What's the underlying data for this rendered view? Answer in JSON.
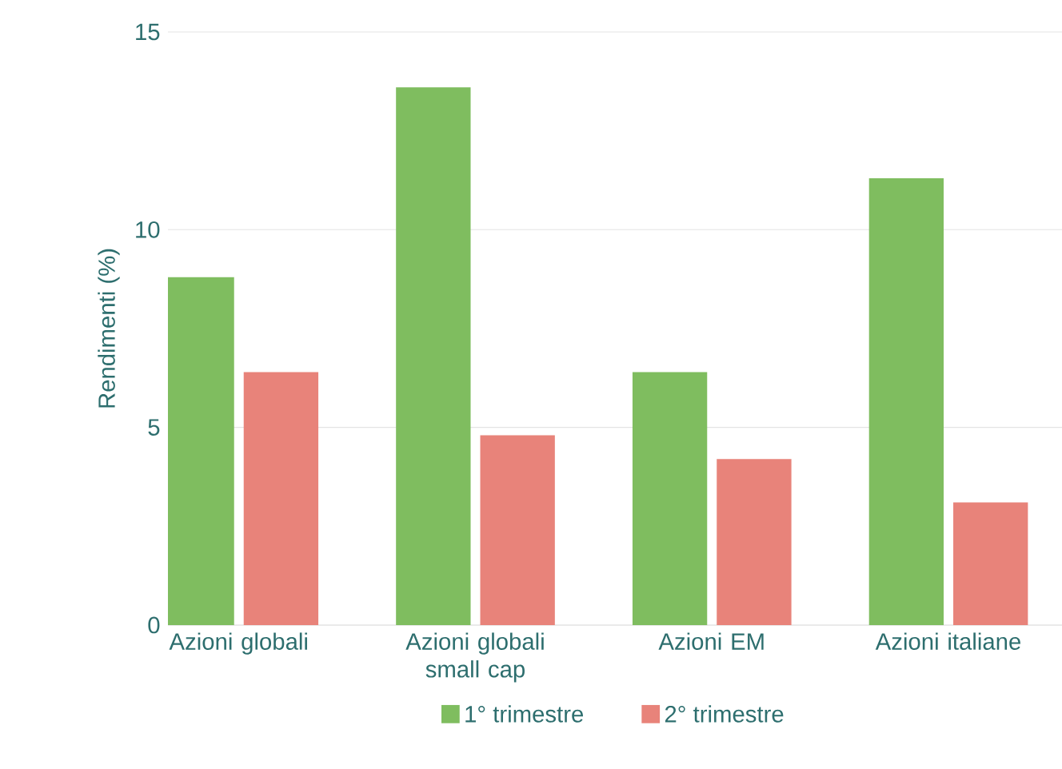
{
  "chart_data": {
    "type": "bar",
    "ylabel": "Rendimenti (%)",
    "categories": [
      "Azioni globali",
      "Azioni globali small cap",
      "Azioni EM",
      "Azioni italiane"
    ],
    "series": [
      {
        "name": "1° trimestre",
        "color": "#7fbd5f",
        "values": [
          8.8,
          13.6,
          6.4,
          11.3
        ]
      },
      {
        "name": "2° trimestre",
        "color": "#e8837a",
        "values": [
          6.4,
          4.8,
          4.2,
          3.1
        ]
      }
    ],
    "ylim": [
      0,
      15
    ],
    "yticks": [
      0,
      5,
      10,
      15
    ],
    "grid": "y",
    "legend": "bottom"
  }
}
